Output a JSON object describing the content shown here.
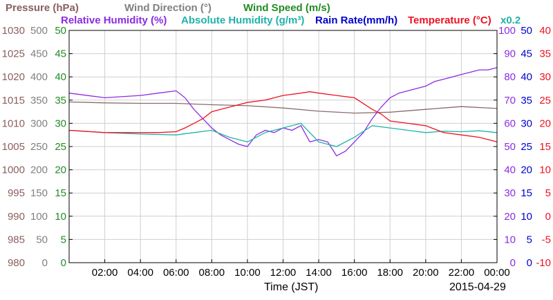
{
  "chart_data": {
    "type": "line",
    "date": "2015-04-29",
    "xlabel": "Time (JST)",
    "x_ticks": [
      "02:00",
      "04:00",
      "06:00",
      "08:00",
      "10:00",
      "12:00",
      "14:00",
      "16:00",
      "18:00",
      "20:00",
      "22:00",
      "00:00"
    ],
    "x_range_hours": [
      0,
      24
    ],
    "grid": true,
    "legend_row1": [
      {
        "key": "pressure",
        "text": "Pressure (hPa)",
        "color": "#8b5e5e"
      },
      {
        "key": "wind_dir",
        "text": "Wind Direction (°)",
        "color": "#808080"
      },
      {
        "key": "wind_speed",
        "text": "Wind Speed (m/s)",
        "color": "#228b22"
      }
    ],
    "legend_row2": [
      {
        "key": "rh",
        "text": "Relative Humidity (%)",
        "color": "#8b2be2"
      },
      {
        "key": "ah",
        "text": "Absolute Humidity (g/m³)",
        "color": "#20b2aa"
      },
      {
        "key": "rain",
        "text": "Rain Rate(mm/h)",
        "color": "#0000cd"
      },
      {
        "key": "temp",
        "text": "Temperature (°C)",
        "color": "#ee1122"
      }
    ],
    "ah_scale_note": "x0.2",
    "axes": {
      "pressure": {
        "ticks": [
          "1030",
          "1025",
          "1020",
          "1015",
          "1010",
          "1005",
          "1000",
          "995",
          "990",
          "985",
          "980"
        ],
        "range": [
          980,
          1030
        ],
        "color": "#8b5e5e"
      },
      "wind_dir": {
        "ticks": [
          "500",
          "450",
          "400",
          "350",
          "300",
          "250",
          "200",
          "150",
          "100",
          "50",
          "0"
        ],
        "range": [
          0,
          500
        ],
        "color": "#808080"
      },
      "wind_speed": {
        "ticks": [
          "50",
          "45",
          "40",
          "35",
          "30",
          "25",
          "20",
          "15",
          "10",
          "5",
          "0"
        ],
        "range": [
          0,
          50
        ],
        "color": "#228b22"
      },
      "rh": {
        "ticks": [
          "100",
          "90",
          "80",
          "70",
          "60",
          "50",
          "40",
          "30",
          "20",
          "10",
          "0"
        ],
        "range": [
          0,
          100
        ],
        "color": "#8b2be2"
      },
      "rain": {
        "ticks": [
          "50",
          "45",
          "40",
          "35",
          "30",
          "25",
          "20",
          "15",
          "10",
          "5",
          "0"
        ],
        "range": [
          0,
          50
        ],
        "color": "#0000cd"
      },
      "temp": {
        "ticks": [
          "40",
          "35",
          "30",
          "25",
          "20",
          "15",
          "10",
          "5",
          "0",
          "-5",
          "-10"
        ],
        "range": [
          -10,
          40
        ],
        "color": "#ee1122"
      }
    },
    "series": [
      {
        "name": "Pressure (hPa)",
        "color": "#8b6a6a",
        "axis": "pressure",
        "x": [
          0,
          2,
          4,
          6,
          8,
          10,
          12,
          14,
          16,
          18,
          20,
          22,
          24
        ],
        "values": [
          1014.6,
          1014.4,
          1014.3,
          1014.3,
          1014.0,
          1013.8,
          1013.3,
          1012.6,
          1012.2,
          1012.4,
          1013.0,
          1013.6,
          1013.2
        ]
      },
      {
        "name": "Relative Humidity (%)",
        "color": "#8b2be2",
        "axis": "rh",
        "x": [
          0,
          2,
          4,
          5,
          6,
          6.5,
          7,
          7.5,
          8,
          8.5,
          9,
          9.5,
          10,
          10.5,
          11,
          11.5,
          12,
          12.5,
          13,
          13.5,
          14,
          14.5,
          15,
          15.5,
          16,
          16.5,
          17,
          17.5,
          18,
          18.5,
          19,
          19.5,
          20,
          20.5,
          21,
          21.5,
          22,
          22.5,
          23,
          23.5,
          24
        ],
        "values": [
          73,
          71,
          72,
          73,
          74,
          71,
          66,
          62,
          58,
          55,
          53,
          51,
          50,
          55,
          57,
          56,
          58,
          57,
          59,
          52,
          53,
          52,
          46,
          48,
          52,
          56,
          62,
          67,
          71,
          73,
          74,
          75,
          76,
          78,
          79,
          80,
          81,
          82,
          83,
          83,
          84
        ]
      },
      {
        "name": "Absolute Humidity (g/m³)",
        "color": "#20b2aa",
        "axis": "wind_speed",
        "x": [
          0,
          2,
          4,
          6,
          7,
          8,
          9,
          10,
          11,
          12,
          13,
          14,
          15,
          16,
          17,
          18,
          19,
          20,
          21,
          22,
          23,
          24
        ],
        "values": [
          28.5,
          28,
          27.7,
          27.5,
          28,
          28.5,
          27,
          26,
          28,
          29,
          30,
          26,
          25,
          27,
          29.5,
          29,
          28.5,
          28,
          28.3,
          28.2,
          28.4,
          28
        ]
      },
      {
        "name": "Temperature (°C)",
        "color": "#ee1122",
        "axis": "temp",
        "x": [
          0,
          2,
          4,
          5,
          6,
          6.5,
          7,
          7.5,
          8,
          9,
          10,
          11,
          12,
          13,
          13.5,
          14,
          15,
          16,
          17,
          17.5,
          18,
          19,
          20,
          21,
          22,
          23,
          24
        ],
        "values": [
          18.5,
          18,
          18,
          18,
          18.2,
          19,
          20,
          21,
          22.5,
          23.5,
          24.5,
          25,
          26,
          26.5,
          26.8,
          26.5,
          26,
          25.5,
          23,
          22,
          20.5,
          20,
          19.5,
          18,
          17.5,
          17,
          16
        ]
      }
    ]
  }
}
